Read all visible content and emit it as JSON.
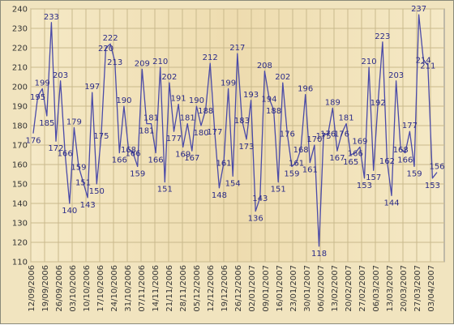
{
  "chart_data": {
    "type": "line",
    "title": "",
    "xlabel": "",
    "ylabel": "",
    "ylim": [
      110,
      240
    ],
    "y_ticks": [
      110,
      120,
      130,
      140,
      150,
      160,
      170,
      180,
      190,
      200,
      210,
      220,
      230,
      240
    ],
    "x_tick_labels": [
      "12/09/2006",
      "19/09/2006",
      "26/09/2006",
      "03/10/2006",
      "10/10/2006",
      "17/10/2006",
      "24/10/2006",
      "31/10/2006",
      "07/11/2006",
      "14/11/2006",
      "21/11/2006",
      "28/11/2006",
      "05/12/2006",
      "12/12/2006",
      "19/12/2006",
      "26/12/2006",
      "02/01/2007",
      "09/01/2007",
      "16/01/2007",
      "23/01/2007",
      "30/01/2007",
      "06/02/2007",
      "13/02/2007",
      "20/02/2007",
      "27/02/2007",
      "06/03/2007",
      "13/03/2007",
      "20/03/2007",
      "27/03/2007",
      "03/04/2007"
    ],
    "grid": true,
    "legend": "none",
    "line_color": "#4a4aa8",
    "series": [
      {
        "values": [
          176,
          195,
          199,
          185,
          233,
          172,
          203,
          166,
          140,
          179,
          159,
          151,
          143,
          197,
          150,
          175,
          220,
          222,
          213,
          166,
          190,
          168,
          166,
          159,
          209,
          181,
          181,
          166,
          210,
          151,
          202,
          177,
          191,
          169,
          181,
          167,
          190,
          180,
          188,
          212,
          177,
          148,
          161,
          199,
          154,
          217,
          183,
          173,
          193,
          136,
          143,
          208,
          194,
          188,
          151,
          202,
          176,
          159,
          161,
          168,
          196,
          161,
          170,
          118,
          175,
          176,
          189,
          167,
          176,
          181,
          165,
          166,
          169,
          153,
          210,
          157,
          192,
          223,
          162,
          144,
          203,
          168,
          166,
          177,
          159,
          237,
          214,
          211,
          153,
          156
        ]
      }
    ]
  }
}
